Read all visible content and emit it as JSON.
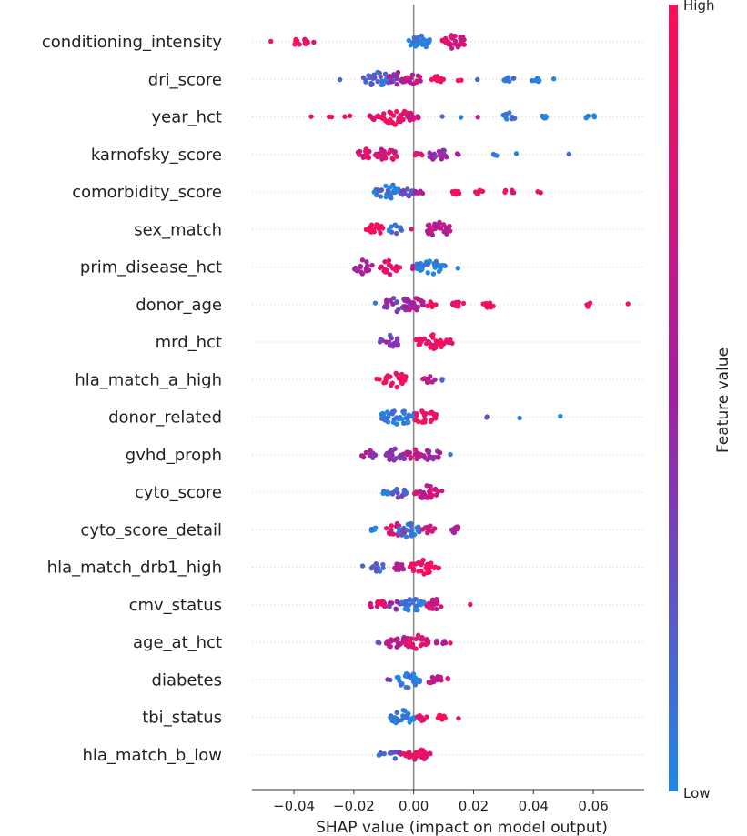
{
  "chart_data": {
    "type": "scatter",
    "subtype": "shap-beeswarm",
    "title": "",
    "xlabel": "SHAP value (impact on model output)",
    "xlim": [
      -0.054,
      0.077
    ],
    "xticks": [
      -0.04,
      -0.02,
      0.0,
      0.02,
      0.04,
      0.06
    ],
    "xtick_labels": [
      "−0.04",
      "−0.02",
      "0.00",
      "0.02",
      "0.04",
      "0.06"
    ],
    "colorbar": {
      "title": "Feature value",
      "high_label": "High",
      "low_label": "Low",
      "low_color": "#1e88e5",
      "high_color": "#ff0d57",
      "mid_color": "#a020a0"
    },
    "features": [
      {
        "name": "conditioning_intensity",
        "clusters": [
          [
            -0.048,
            1,
            0.9
          ],
          [
            -0.038,
            14,
            0.9
          ],
          [
            -0.034,
            1,
            0.9
          ],
          [
            0.002,
            22,
            0.05
          ],
          [
            0.014,
            28,
            0.75
          ]
        ]
      },
      {
        "name": "dri_score",
        "clusters": [
          [
            -0.025,
            1,
            0.1
          ],
          [
            -0.012,
            34,
            0.15
          ],
          [
            -0.005,
            20,
            0.5
          ],
          [
            0.0,
            14,
            0.7
          ],
          [
            0.008,
            10,
            0.9
          ],
          [
            0.015,
            2,
            0.95
          ],
          [
            0.022,
            1,
            0.1
          ],
          [
            0.032,
            8,
            0.05
          ],
          [
            0.041,
            6,
            0.05
          ],
          [
            0.046,
            1,
            0.05
          ]
        ]
      },
      {
        "name": "year_hct",
        "clusters": [
          [
            -0.034,
            1,
            0.95
          ],
          [
            -0.028,
            2,
            0.95
          ],
          [
            -0.022,
            2,
            0.95
          ],
          [
            -0.013,
            8,
            0.85
          ],
          [
            -0.006,
            40,
            0.9
          ],
          [
            0.0,
            8,
            0.7
          ],
          [
            0.009,
            1,
            0.1
          ],
          [
            0.016,
            1,
            0.1
          ],
          [
            0.021,
            1,
            0.5
          ],
          [
            0.032,
            10,
            0.05
          ],
          [
            0.044,
            6,
            0.05
          ],
          [
            0.059,
            6,
            0.05
          ]
        ]
      },
      {
        "name": "karnofsky_score",
        "clusters": [
          [
            -0.016,
            14,
            0.85
          ],
          [
            -0.009,
            24,
            0.75
          ],
          [
            0.002,
            6,
            0.9
          ],
          [
            0.008,
            18,
            0.45
          ],
          [
            0.014,
            2,
            0.6
          ],
          [
            0.027,
            3,
            0.1
          ],
          [
            0.035,
            1,
            0.1
          ],
          [
            0.051,
            1,
            0.1
          ]
        ]
      },
      {
        "name": "comorbidity_score",
        "clusters": [
          [
            -0.008,
            34,
            0.1
          ],
          [
            -0.002,
            12,
            0.3
          ],
          [
            0.002,
            6,
            0.6
          ],
          [
            0.014,
            6,
            0.9
          ],
          [
            0.022,
            6,
            0.95
          ],
          [
            0.032,
            6,
            0.95
          ],
          [
            0.042,
            2,
            0.95
          ]
        ]
      },
      {
        "name": "sex_match",
        "clusters": [
          [
            -0.013,
            16,
            0.95
          ],
          [
            -0.006,
            12,
            0.15
          ],
          [
            -0.001,
            1,
            0.95
          ],
          [
            0.008,
            28,
            0.6
          ]
        ]
      },
      {
        "name": "prim_disease_hct",
        "clusters": [
          [
            -0.017,
            18,
            0.55
          ],
          [
            -0.008,
            20,
            0.85
          ],
          [
            0.0,
            4,
            0.5
          ],
          [
            0.006,
            32,
            0.05
          ],
          [
            0.015,
            1,
            0.05
          ]
        ]
      },
      {
        "name": "donor_age",
        "clusters": [
          [
            -0.013,
            1,
            0.1
          ],
          [
            -0.005,
            34,
            0.4
          ],
          [
            0.0,
            20,
            0.6
          ],
          [
            0.006,
            6,
            0.9
          ],
          [
            0.015,
            10,
            0.95
          ],
          [
            0.025,
            8,
            0.95
          ],
          [
            0.058,
            4,
            0.95
          ],
          [
            0.071,
            1,
            0.95
          ]
        ]
      },
      {
        "name": "mrd_hct",
        "clusters": [
          [
            -0.008,
            20,
            0.35
          ],
          [
            0.006,
            34,
            0.92
          ],
          [
            0.012,
            4,
            0.9
          ]
        ]
      },
      {
        "name": "hla_match_a_high",
        "clusters": [
          [
            -0.012,
            2,
            0.95
          ],
          [
            -0.006,
            26,
            0.95
          ],
          [
            0.005,
            10,
            0.6
          ],
          [
            0.009,
            2,
            0.1
          ]
        ]
      },
      {
        "name": "donor_related",
        "clusters": [
          [
            -0.005,
            40,
            0.05
          ],
          [
            0.004,
            22,
            0.95
          ],
          [
            0.024,
            2,
            0.1
          ],
          [
            0.035,
            1,
            0.05
          ],
          [
            0.049,
            1,
            0.05
          ]
        ]
      },
      {
        "name": "gvhd_proph",
        "clusters": [
          [
            -0.015,
            12,
            0.5
          ],
          [
            -0.006,
            24,
            0.4
          ],
          [
            0.0,
            14,
            0.7
          ],
          [
            0.006,
            18,
            0.5
          ],
          [
            0.012,
            1,
            0.05
          ]
        ]
      },
      {
        "name": "cyto_score",
        "clusters": [
          [
            -0.01,
            8,
            0.1
          ],
          [
            -0.005,
            14,
            0.2
          ],
          [
            0.004,
            24,
            0.7
          ],
          [
            0.009,
            2,
            0.6
          ]
        ]
      },
      {
        "name": "cyto_score_detail",
        "clusters": [
          [
            -0.013,
            6,
            0.05
          ],
          [
            -0.006,
            18,
            0.8
          ],
          [
            -0.002,
            24,
            0.1
          ],
          [
            0.005,
            10,
            0.8
          ],
          [
            0.014,
            8,
            0.6
          ]
        ]
      },
      {
        "name": "hla_match_drb1_high",
        "clusters": [
          [
            -0.017,
            1,
            0.1
          ],
          [
            -0.012,
            12,
            0.15
          ],
          [
            -0.005,
            10,
            0.6
          ],
          [
            0.003,
            28,
            0.95
          ],
          [
            0.008,
            3,
            0.9
          ]
        ]
      },
      {
        "name": "cmv_status",
        "clusters": [
          [
            -0.012,
            14,
            0.85
          ],
          [
            -0.006,
            12,
            0.4
          ],
          [
            0.0,
            26,
            0.05
          ],
          [
            0.007,
            16,
            0.7
          ],
          [
            0.019,
            1,
            0.9
          ]
        ]
      },
      {
        "name": "age_at_hct",
        "clusters": [
          [
            -0.011,
            2,
            0.2
          ],
          [
            -0.005,
            26,
            0.6
          ],
          [
            0.001,
            26,
            0.8
          ],
          [
            0.009,
            8,
            0.5
          ],
          [
            0.013,
            1,
            0.95
          ]
        ]
      },
      {
        "name": "diabetes",
        "clusters": [
          [
            -0.008,
            2,
            0.3
          ],
          [
            -0.002,
            26,
            0.05
          ],
          [
            0.007,
            14,
            0.65
          ],
          [
            0.011,
            2,
            0.95
          ]
        ]
      },
      {
        "name": "tbi_status",
        "clusters": [
          [
            -0.004,
            26,
            0.05
          ],
          [
            0.003,
            8,
            0.9
          ],
          [
            0.009,
            6,
            0.95
          ],
          [
            0.015,
            1,
            0.9
          ]
        ]
      },
      {
        "name": "hla_match_b_low",
        "clusters": [
          [
            -0.011,
            4,
            0.1
          ],
          [
            -0.006,
            10,
            0.3
          ],
          [
            -0.002,
            6,
            0.9
          ],
          [
            0.002,
            24,
            0.9
          ]
        ]
      }
    ]
  }
}
